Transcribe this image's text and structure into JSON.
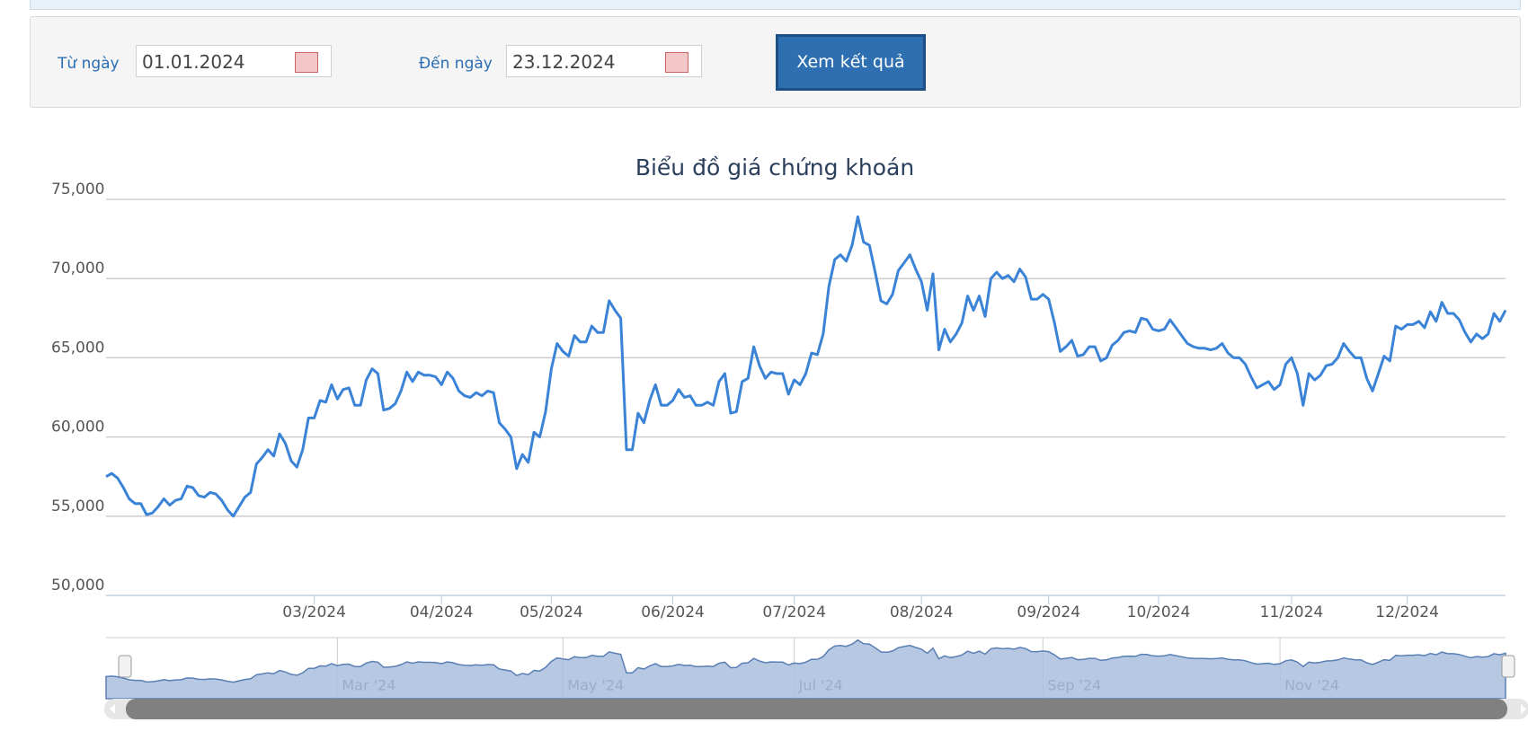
{
  "form": {
    "from_label": "Từ ngày",
    "from_value": "01.01.2024",
    "to_label": "Đến ngày",
    "to_value": "23.12.2024",
    "button": "Xem kết quả"
  },
  "chart_data": {
    "type": "line",
    "title": "Biểu đồ giá chứng khoán",
    "color": "#3a83d6",
    "grid": true,
    "values": [
      57500,
      57700,
      57400,
      56800,
      56100,
      55800,
      55800,
      55100,
      55200,
      55600,
      56100,
      55700,
      56000,
      56100,
      56900,
      56800,
      56300,
      56200,
      56500,
      56400,
      56000,
      55400,
      55000,
      55600,
      56200,
      56500,
      58300,
      58700,
      59200,
      58800,
      60200,
      59600,
      58500,
      58100,
      59200,
      61200,
      61200,
      62300,
      62200,
      63300,
      62400,
      63000,
      63100,
      62000,
      62000,
      63600,
      64300,
      64000,
      61700,
      61800,
      62100,
      62900,
      64100,
      63500,
      64100,
      63900,
      63900,
      63800,
      63300,
      64100,
      63700,
      62900,
      62600,
      62500,
      62800,
      62600,
      62900,
      62800,
      60900,
      60500,
      60000,
      58000,
      58900,
      58400,
      60300,
      60000,
      61600,
      64300,
      65900,
      65400,
      65100,
      66400,
      66000,
      66000,
      67000,
      66600,
      66600,
      68600,
      68000,
      67500,
      59200,
      59200,
      61500,
      60900,
      62300,
      63300,
      62000,
      62000,
      62300,
      63000,
      62500,
      62600,
      62000,
      62000,
      62200,
      62000,
      63500,
      64000,
      61500,
      61600,
      63500,
      63700,
      65700,
      64500,
      63700,
      64100,
      64000,
      64000,
      62700,
      63600,
      63300,
      64000,
      65300,
      65200,
      66500,
      69500,
      71200,
      71500,
      71100,
      72100,
      73900,
      72300,
      72100,
      70400,
      68600,
      68400,
      69000,
      70500,
      71000,
      71500,
      70600,
      69800,
      68000,
      70300,
      65500,
      66800,
      66000,
      66500,
      67200,
      68900,
      68000,
      68900,
      67600,
      70000,
      70400,
      70000,
      70200,
      69800,
      70600,
      70100,
      68700,
      68700,
      69000,
      68700,
      67200,
      65400,
      65700,
      66100,
      65100,
      65200,
      65700,
      65700,
      64800,
      65000,
      65800,
      66100,
      66600,
      66700,
      66600,
      67500,
      67400,
      66800,
      66700,
      66800,
      67400,
      66900,
      66400,
      65900,
      65700,
      65600,
      65600,
      65500,
      65600,
      65900,
      65300,
      65000,
      65000,
      64600,
      63800,
      63100,
      63300,
      63500,
      63000,
      63300,
      64600,
      65000,
      64000,
      62000,
      64000,
      63600,
      63900,
      64500,
      64600,
      65000,
      65900,
      65400,
      65000,
      65000,
      63700,
      62900,
      64000,
      65100,
      64800,
      67000,
      66800,
      67100,
      67100,
      67300,
      66900,
      67900,
      67300,
      68500,
      67800,
      67800,
      67400,
      66600,
      66000,
      66500,
      66200,
      66500,
      67800,
      67300,
      68000
    ],
    "xlim": [
      0,
      242
    ],
    "xticks": [
      {
        "value": 36,
        "label": "03/2024"
      },
      {
        "value": 58,
        "label": "04/2024"
      },
      {
        "value": 77,
        "label": "05/2024"
      },
      {
        "value": 98,
        "label": "06/2024"
      },
      {
        "value": 119,
        "label": "07/2024"
      },
      {
        "value": 141,
        "label": "08/2024"
      },
      {
        "value": 163,
        "label": "09/2024"
      },
      {
        "value": 182,
        "label": "10/2024"
      },
      {
        "value": 205,
        "label": "11/2024"
      },
      {
        "value": 225,
        "label": "12/2024"
      }
    ],
    "ylim": [
      50000,
      75000
    ],
    "yticks": [
      {
        "value": 50000,
        "label": "50,000"
      },
      {
        "value": 55000,
        "label": "55,000"
      },
      {
        "value": 60000,
        "label": "60,000"
      },
      {
        "value": 65000,
        "label": "65,000"
      },
      {
        "value": 70000,
        "label": "70,000"
      },
      {
        "value": 75000,
        "label": "75,000"
      }
    ],
    "navigator_ticks": [
      {
        "value": 40,
        "label": "Mar '24"
      },
      {
        "value": 79,
        "label": "May '24"
      },
      {
        "value": 119,
        "label": "Jul '24"
      },
      {
        "value": 162,
        "label": "Sep '24"
      },
      {
        "value": 203,
        "label": "Nov '24"
      }
    ]
  }
}
